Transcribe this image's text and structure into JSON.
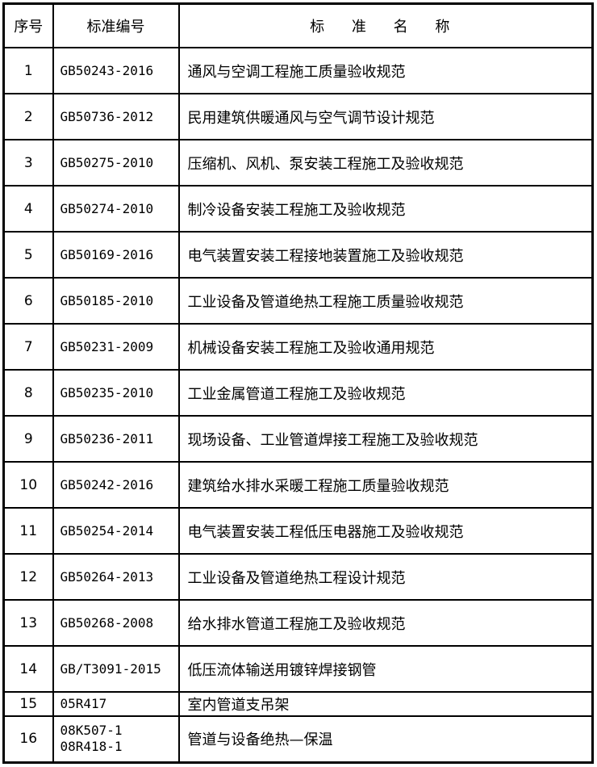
{
  "header": {
    "index": "序号",
    "code": "标准编号",
    "name": "标 准 名 称"
  },
  "rows": [
    {
      "index": "1",
      "code": "GB50243-2016",
      "name": "通风与空调工程施工质量验收规范"
    },
    {
      "index": "2",
      "code": "GB50736-2012",
      "name": "民用建筑供暖通风与空气调节设计规范"
    },
    {
      "index": "3",
      "code": "GB50275-2010",
      "name": "压缩机、风机、泵安装工程施工及验收规范"
    },
    {
      "index": "4",
      "code": "GB50274-2010",
      "name": "制冷设备安装工程施工及验收规范"
    },
    {
      "index": "5",
      "code": "GB50169-2016",
      "name": "电气装置安装工程接地装置施工及验收规范"
    },
    {
      "index": "6",
      "code": "GB50185-2010",
      "name": "工业设备及管道绝热工程施工质量验收规范"
    },
    {
      "index": "7",
      "code": "GB50231-2009",
      "name": "机械设备安装工程施工及验收通用规范"
    },
    {
      "index": "8",
      "code": "GB50235-2010",
      "name": "工业金属管道工程施工及验收规范"
    },
    {
      "index": "9",
      "code": "GB50236-2011",
      "name": "现场设备、工业管道焊接工程施工及验收规范"
    },
    {
      "index": "10",
      "code": "GB50242-2016",
      "name": "建筑给水排水采暖工程施工质量验收规范"
    },
    {
      "index": "11",
      "code": "GB50254-2014",
      "name": "电气装置安装工程低压电器施工及验收规范"
    },
    {
      "index": "12",
      "code": "GB50264-2013",
      "name": "工业设备及管道绝热工程设计规范"
    },
    {
      "index": "13",
      "code": "GB50268-2008",
      "name": "给水排水管道工程施工及验收规范"
    },
    {
      "index": "14",
      "code": "GB/T3091-2015",
      "name": "低压流体输送用镀锌焊接钢管"
    },
    {
      "index": "15",
      "code": "05R417",
      "name": "室内管道支吊架"
    },
    {
      "index": "16",
      "code": "08K507-1",
      "code2": "08R418-1",
      "name": "管道与设备绝热—保温"
    }
  ]
}
